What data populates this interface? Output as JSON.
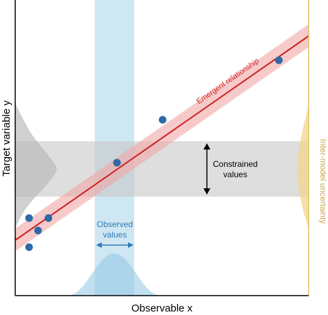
{
  "axes": {
    "xlabel": "Observable x",
    "ylabel": "Target variable y"
  },
  "labels": {
    "emergent_relationship": "Emergent relationship",
    "constrained_values_line1": "Constrained",
    "constrained_values_line2": "values",
    "observed_values_line1": "Observed",
    "observed_values_line2": "values",
    "inter_model_uncertainty": "Inter-model uncertainty"
  },
  "colors": {
    "point": "#2e6aa7",
    "regression_line": "#cc2222",
    "regression_band": "#f2a6a6",
    "observed_band": "#a8d4ea",
    "observed_label": "#2f7bb5",
    "constrained_band": "#cfcfcf",
    "prior_distribution": "#b7b7b7",
    "inter_model_distribution": "#f1d68a",
    "inter_model_label": "#c9a84a",
    "axis": "#000000"
  }
}
